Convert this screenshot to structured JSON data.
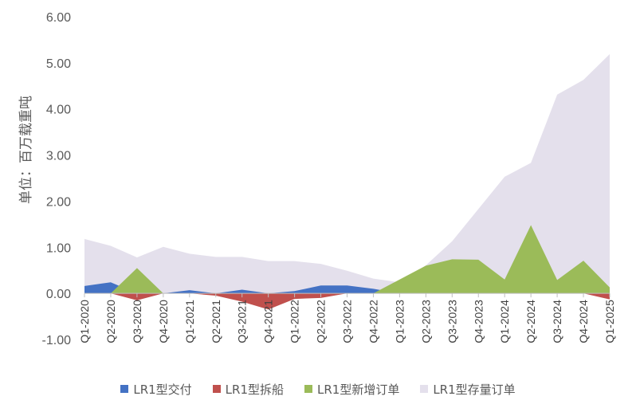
{
  "chart_data": {
    "type": "area",
    "ylabel": "单位：百万载重吨",
    "ylim": [
      -1.0,
      6.0
    ],
    "yticks": [
      "-1.00",
      "0.00",
      "1.00",
      "2.00",
      "3.00",
      "4.00",
      "5.00",
      "6.00"
    ],
    "categories": [
      "Q1-2020",
      "Q2-2020",
      "Q3-2020",
      "Q4-2020",
      "Q1-2021",
      "Q2-2021",
      "Q3-2021",
      "Q4-2021",
      "Q1-2022",
      "Q2-2022",
      "Q3-2022",
      "Q4-2022",
      "Q1-2023",
      "Q2-2023",
      "Q3-2023",
      "Q4-2023",
      "Q1-2024",
      "Q2-2024",
      "Q3-2024",
      "Q4-2024",
      "Q1-2025"
    ],
    "series": [
      {
        "name": "LR1型存量订单",
        "color": "#e4e0ec",
        "values": [
          1.18,
          1.03,
          0.78,
          1.01,
          0.86,
          0.79,
          0.79,
          0.7,
          0.7,
          0.64,
          0.49,
          0.32,
          0.24,
          0.61,
          1.13,
          1.83,
          2.53,
          2.83,
          4.31,
          4.63,
          5.19
        ]
      },
      {
        "name": "LR1型交付",
        "color": "#4472c4",
        "values": [
          0.16,
          0.24,
          0.0,
          0.0,
          0.07,
          0.0,
          0.08,
          0.0,
          0.05,
          0.17,
          0.17,
          0.1,
          0.0,
          0.0,
          0.0,
          0.0,
          0.0,
          0.0,
          0.0,
          0.0,
          0.0
        ]
      },
      {
        "name": "LR1型拆船",
        "color": "#c0504d",
        "values": [
          0.0,
          0.0,
          -0.15,
          0.0,
          0.0,
          -0.05,
          -0.18,
          -0.35,
          -0.12,
          -0.1,
          0.0,
          0.0,
          0.0,
          0.0,
          0.0,
          0.0,
          0.0,
          0.0,
          0.0,
          0.0,
          -0.13
        ]
      },
      {
        "name": "LR1型新增订单",
        "color": "#9bbb59",
        "values": [
          0.0,
          0.0,
          0.55,
          0.0,
          0.0,
          0.0,
          0.0,
          0.0,
          0.0,
          0.0,
          0.0,
          0.0,
          0.3,
          0.6,
          0.74,
          0.73,
          0.3,
          1.48,
          0.29,
          0.71,
          0.13
        ]
      }
    ],
    "legend_order": [
      "LR1型交付",
      "LR1型拆船",
      "LR1型新增订单",
      "LR1型存量订单"
    ],
    "legend_position": "bottom",
    "grid": false
  }
}
